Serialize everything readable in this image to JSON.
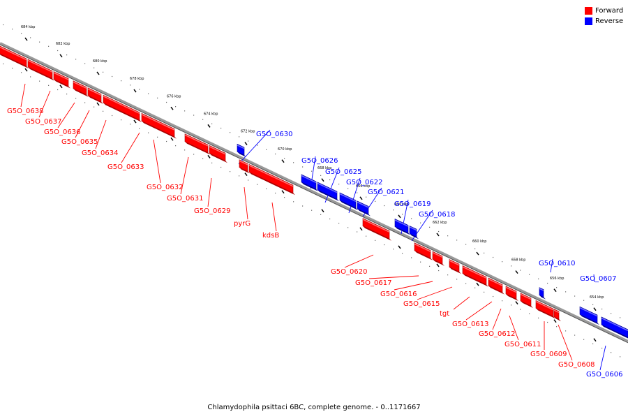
{
  "caption": "Chlamydophila psittaci 6BC, complete genome. - 0..1171667",
  "legend": [
    {
      "label": "Forward",
      "color": "#ff0000"
    },
    {
      "label": "Reverse",
      "color": "#0000ff"
    }
  ],
  "colors": {
    "forward": "#ff0000",
    "reverse": "#0000ff",
    "backbone": "#888888"
  },
  "ticks": [
    "684 kbp",
    "682 kbp",
    "680 kbp",
    "678 kbp",
    "676 kbp",
    "674 kbp",
    "672 kbp",
    "670 kbp",
    "668 kbp",
    "666 kbp",
    "664 kbp",
    "662 kbp",
    "660 kbp",
    "658 kbp",
    "656 kbp",
    "654 kbp"
  ],
  "genes": [
    {
      "name": "G5O_0638",
      "strand": "forward"
    },
    {
      "name": "G5O_0637",
      "strand": "forward"
    },
    {
      "name": "G5O_0636",
      "strand": "forward"
    },
    {
      "name": "G5O_0635",
      "strand": "forward"
    },
    {
      "name": "G5O_0634",
      "strand": "forward"
    },
    {
      "name": "G5O_0633",
      "strand": "forward"
    },
    {
      "name": "G5O_0632",
      "strand": "forward"
    },
    {
      "name": "G5O_0631",
      "strand": "forward"
    },
    {
      "name": "G5O_0630",
      "strand": "reverse"
    },
    {
      "name": "G5O_0629",
      "strand": "forward"
    },
    {
      "name": "pyrG",
      "strand": "forward"
    },
    {
      "name": "kdsB",
      "strand": "forward"
    },
    {
      "name": "G5O_0626",
      "strand": "reverse"
    },
    {
      "name": "G5O_0625",
      "strand": "reverse"
    },
    {
      "name": "G5O_0622",
      "strand": "reverse"
    },
    {
      "name": "G5O_0621",
      "strand": "reverse"
    },
    {
      "name": "G5O_0620",
      "strand": "forward"
    },
    {
      "name": "G5O_0619",
      "strand": "reverse"
    },
    {
      "name": "G5O_0618",
      "strand": "reverse"
    },
    {
      "name": "G5O_0617",
      "strand": "forward"
    },
    {
      "name": "G5O_0616",
      "strand": "forward"
    },
    {
      "name": "G5O_0615",
      "strand": "forward"
    },
    {
      "name": "tgt",
      "strand": "forward"
    },
    {
      "name": "G5O_0613",
      "strand": "forward"
    },
    {
      "name": "G5O_0612",
      "strand": "forward"
    },
    {
      "name": "G5O_0611",
      "strand": "forward"
    },
    {
      "name": "G5O_0610",
      "strand": "reverse"
    },
    {
      "name": "G5O_0609",
      "strand": "forward"
    },
    {
      "name": "G5O_0608",
      "strand": "forward"
    },
    {
      "name": "G5O_0607",
      "strand": "reverse"
    },
    {
      "name": "G5O_0606",
      "strand": "reverse"
    }
  ]
}
